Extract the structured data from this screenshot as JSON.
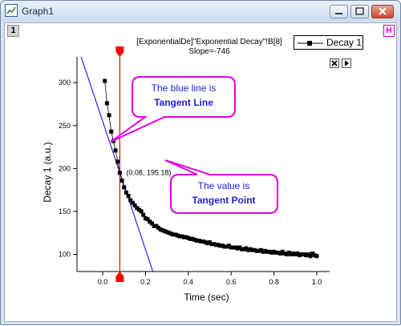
{
  "window": {
    "title": "Graph1",
    "layer_number": "1",
    "h_button": "H",
    "colors": {
      "frame": "#d9e4f1",
      "close": "#c9462c"
    }
  },
  "header": {
    "line1": "[ExponentialDe]\"Exponential Decay\"!B[8]",
    "line2": "Slope=-746"
  },
  "legend": {
    "label": "Decay 1"
  },
  "mini_buttons": {
    "close_icon": "close-icon",
    "play_icon": "play-icon"
  },
  "callouts": {
    "tangent_line": {
      "line1": "The blue line is",
      "line2": "Tangent Line"
    },
    "tangent_point": {
      "line1": "The value is",
      "line2": "Tangent Point"
    }
  },
  "tangent": {
    "point_label": "(0.08, 195.18)",
    "x": 0.08,
    "y": 195.18,
    "slope": -746,
    "line_color": "#0000ff",
    "marker_color": "#ff0000"
  },
  "chart_data": {
    "type": "scatter",
    "title": "",
    "xlabel": "Time (sec)",
    "ylabel": "Decay 1 (a.u.)",
    "xlim": [
      -0.12,
      1.06
    ],
    "ylim": [
      80,
      330
    ],
    "xticks": [
      0.0,
      0.2,
      0.4,
      0.6,
      0.8,
      1.0
    ],
    "xtick_labels": [
      "0.0",
      "0.2",
      "0.4",
      "0.6",
      "0.8",
      "1.0"
    ],
    "yticks": [
      100,
      150,
      200,
      250,
      300
    ],
    "ytick_labels": [
      "100",
      "150",
      "200",
      "250",
      "300"
    ],
    "grid": false,
    "legend_position": "top-right",
    "series": [
      {
        "name": "Decay 1",
        "color": "#000000",
        "marker": "square",
        "x": [
          0.01,
          0.02,
          0.03,
          0.04,
          0.05,
          0.06,
          0.07,
          0.08,
          0.09,
          0.1,
          0.11,
          0.12,
          0.13,
          0.14,
          0.15,
          0.16,
          0.17,
          0.18,
          0.19,
          0.2,
          0.21,
          0.22,
          0.23,
          0.24,
          0.25,
          0.26,
          0.27,
          0.28,
          0.29,
          0.3,
          0.31,
          0.32,
          0.33,
          0.34,
          0.35,
          0.36,
          0.37,
          0.38,
          0.39,
          0.4,
          0.41,
          0.42,
          0.43,
          0.44,
          0.45,
          0.46,
          0.47,
          0.48,
          0.49,
          0.5,
          0.51,
          0.52,
          0.53,
          0.54,
          0.55,
          0.56,
          0.57,
          0.58,
          0.59,
          0.6,
          0.61,
          0.62,
          0.63,
          0.64,
          0.65,
          0.66,
          0.67,
          0.68,
          0.69,
          0.7,
          0.71,
          0.72,
          0.73,
          0.74,
          0.75,
          0.76,
          0.77,
          0.78,
          0.79,
          0.8,
          0.81,
          0.82,
          0.83,
          0.84,
          0.85,
          0.86,
          0.87,
          0.88,
          0.89,
          0.9,
          0.91,
          0.92,
          0.93,
          0.94,
          0.95,
          0.96,
          0.97,
          0.98,
          0.99,
          1.0
        ],
        "y": [
          302,
          276,
          262,
          243,
          232,
          221,
          208,
          195,
          186,
          178,
          172,
          168,
          163,
          160,
          157,
          154,
          152,
          150,
          146,
          142,
          141,
          138,
          136,
          133,
          133,
          131,
          129,
          128,
          127,
          126,
          125,
          124,
          123,
          123,
          122,
          121,
          121,
          120,
          120,
          119,
          118,
          118,
          117,
          116,
          116,
          115,
          115,
          114,
          113,
          114,
          112,
          112,
          111,
          111,
          110,
          110,
          109,
          109,
          110,
          108,
          108,
          108,
          107,
          108,
          106,
          106,
          107,
          105,
          106,
          105,
          105,
          104,
          104,
          105,
          103,
          104,
          103,
          103,
          102,
          103,
          102,
          102,
          101,
          103,
          101,
          100,
          102,
          100,
          101,
          100,
          101,
          99,
          100,
          100,
          99,
          100,
          98,
          101,
          99,
          98
        ]
      }
    ]
  }
}
